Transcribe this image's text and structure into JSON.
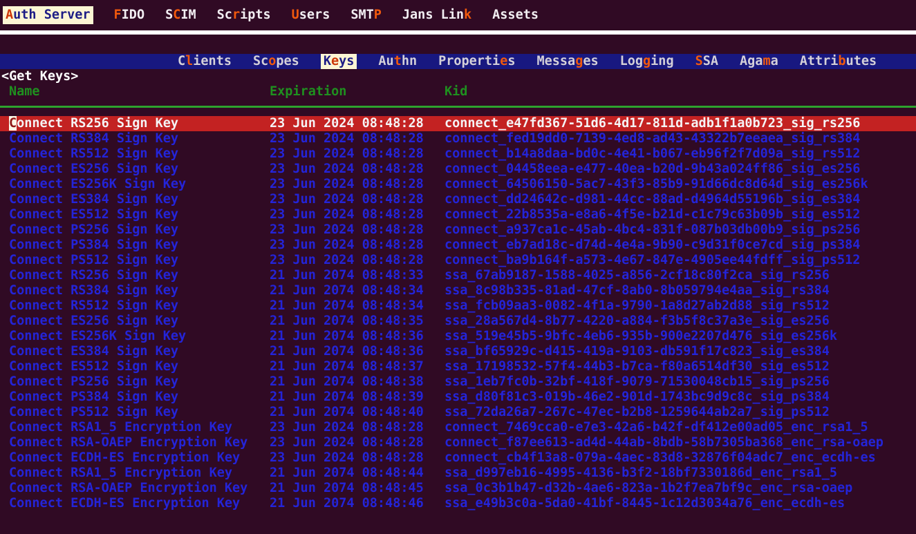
{
  "colors": {
    "background": "#300a24",
    "navbar_bg": "#181880",
    "selection_bg": "#c32222",
    "row_text": "#2424d8",
    "header_text": "#1f901f",
    "rule": "#2ea22e",
    "accent": "#f2590d",
    "highlight_bg": "#fcf6d4",
    "highlight_text": "#1c1c85",
    "menu_text": "#f2eef2",
    "nav_text": "#d4d0d8",
    "separator": "#ffffff",
    "selected_text": "#f5f3f5",
    "cursor_bg": "#fbf7e8",
    "cursor_text": "#8f1616"
  },
  "menubar": {
    "items": [
      {
        "pre": "",
        "hot": "A",
        "post": "uth Server",
        "active": true
      },
      {
        "pre": "",
        "hot": "F",
        "post": "IDO"
      },
      {
        "pre": "S",
        "hot": "C",
        "post": "IM"
      },
      {
        "pre": "Sc",
        "hot": "r",
        "post": "ipts"
      },
      {
        "pre": "",
        "hot": "U",
        "post": "sers"
      },
      {
        "pre": "SMT",
        "hot": "P",
        "post": ""
      },
      {
        "pre": "Jans Lin",
        "hot": "k",
        "post": ""
      },
      {
        "pre": "Assets",
        "hot": "",
        "post": ""
      }
    ]
  },
  "navbar": {
    "items": [
      {
        "pre": "C",
        "hot": "l",
        "post": "ients"
      },
      {
        "pre": "Sc",
        "hot": "o",
        "post": "pes"
      },
      {
        "pre": "K",
        "hot": "e",
        "post": "ys",
        "active": true
      },
      {
        "pre": "Au",
        "hot": "t",
        "post": "hn"
      },
      {
        "pre": "Properti",
        "hot": "e",
        "post": "s"
      },
      {
        "pre": "Messa",
        "hot": "g",
        "post": "es"
      },
      {
        "pre": "Log",
        "hot": "g",
        "post": "ing"
      },
      {
        "pre": "",
        "hot": "S",
        "post": "SA"
      },
      {
        "pre": "Aga",
        "hot": "m",
        "post": "a"
      },
      {
        "pre": "Attri",
        "hot": "b",
        "post": "utes"
      }
    ]
  },
  "get_keys_button": "<Get Keys>",
  "table": {
    "columns": [
      "Name",
      "Expiration",
      "Kid"
    ],
    "rows": [
      {
        "name": "Connect RS256 Sign Key",
        "expiration": "23 Jun 2024 08:48:28",
        "kid": "connect_e47fd367-51d6-4d17-811d-adb1f1a0b723_sig_rs256",
        "selected": true
      },
      {
        "name": "Connect RS384 Sign Key",
        "expiration": "23 Jun 2024 08:48:28",
        "kid": "connect_fed19dd0-7139-4ed8-ad43-43322b7eeaea_sig_rs384"
      },
      {
        "name": "Connect RS512 Sign Key",
        "expiration": "23 Jun 2024 08:48:28",
        "kid": "connect_b14a8daa-bd0c-4e41-b067-eb96f2f7d09a_sig_rs512"
      },
      {
        "name": "Connect ES256 Sign Key",
        "expiration": "23 Jun 2024 08:48:28",
        "kid": "connect_04458eea-e477-40ea-b20d-9b43a024ff86_sig_es256"
      },
      {
        "name": "Connect ES256K Sign Key",
        "expiration": "23 Jun 2024 08:48:28",
        "kid": "connect_64506150-5ac7-43f3-85b9-91d66dc8d64d_sig_es256k"
      },
      {
        "name": "Connect ES384 Sign Key",
        "expiration": "23 Jun 2024 08:48:28",
        "kid": "connect_dd24642c-d981-44cc-88ad-d4964d55196b_sig_es384"
      },
      {
        "name": "Connect ES512 Sign Key",
        "expiration": "23 Jun 2024 08:48:28",
        "kid": "connect_22b8535a-e8a6-4f5e-b21d-c1c79c63b09b_sig_es512"
      },
      {
        "name": "Connect PS256 Sign Key",
        "expiration": "23 Jun 2024 08:48:28",
        "kid": "connect_a937ca1c-45ab-4bc4-831f-087b03db00b9_sig_ps256"
      },
      {
        "name": "Connect PS384 Sign Key",
        "expiration": "23 Jun 2024 08:48:28",
        "kid": "connect_eb7ad18c-d74d-4e4a-9b90-c9d31f0ce7cd_sig_ps384"
      },
      {
        "name": "Connect PS512 Sign Key",
        "expiration": "23 Jun 2024 08:48:28",
        "kid": "connect_ba9b164f-a573-4e67-847e-4905ee44fdff_sig_ps512"
      },
      {
        "name": "Connect RS256 Sign Key",
        "expiration": "21 Jun 2074 08:48:33",
        "kid": "ssa_67ab9187-1588-4025-a856-2cf18c80f2ca_sig_rs256"
      },
      {
        "name": "Connect RS384 Sign Key",
        "expiration": "21 Jun 2074 08:48:34",
        "kid": "ssa_8c98b335-81ad-47cf-8ab0-8b059794e4aa_sig_rs384"
      },
      {
        "name": "Connect RS512 Sign Key",
        "expiration": "21 Jun 2074 08:48:34",
        "kid": "ssa_fcb09aa3-0082-4f1a-9790-1a8d27ab2d88_sig_rs512"
      },
      {
        "name": "Connect ES256 Sign Key",
        "expiration": "21 Jun 2074 08:48:35",
        "kid": "ssa_28a567d4-8b77-4220-a884-f3b5f8c37a3e_sig_es256"
      },
      {
        "name": "Connect ES256K Sign Key",
        "expiration": "21 Jun 2074 08:48:36",
        "kid": "ssa_519e45b5-9bfc-4eb6-935b-900e2207d476_sig_es256k"
      },
      {
        "name": "Connect ES384 Sign Key",
        "expiration": "21 Jun 2074 08:48:36",
        "kid": "ssa_bf65929c-d415-419a-9103-db591f17c823_sig_es384"
      },
      {
        "name": "Connect ES512 Sign Key",
        "expiration": "21 Jun 2074 08:48:37",
        "kid": "ssa_17198532-57f4-44b3-b7ca-f80a6514df30_sig_es512"
      },
      {
        "name": "Connect PS256 Sign Key",
        "expiration": "21 Jun 2074 08:48:38",
        "kid": "ssa_1eb7fc0b-32bf-418f-9079-71530048cb15_sig_ps256"
      },
      {
        "name": "Connect PS384 Sign Key",
        "expiration": "21 Jun 2074 08:48:39",
        "kid": "ssa_d80f81c3-019b-46e2-901d-1743bc9d9c8c_sig_ps384"
      },
      {
        "name": "Connect PS512 Sign Key",
        "expiration": "21 Jun 2074 08:48:40",
        "kid": "ssa_72da26a7-267c-47ec-b2b8-1259644ab2a7_sig_ps512"
      },
      {
        "name": "Connect RSA1_5 Encryption Key",
        "expiration": "23 Jun 2024 08:48:28",
        "kid": "connect_7469cca0-e7e3-42a6-b42f-df412e00ad05_enc_rsa1_5"
      },
      {
        "name": "Connect RSA-OAEP Encryption Key",
        "expiration": "23 Jun 2024 08:48:28",
        "kid": "connect_f87ee613-ad4d-44ab-8bdb-58b7305ba368_enc_rsa-oaep"
      },
      {
        "name": "Connect ECDH-ES Encryption Key",
        "expiration": "23 Jun 2024 08:48:28",
        "kid": "connect_cb4f13a8-079a-4aec-83d8-32876f04adc7_enc_ecdh-es"
      },
      {
        "name": "Connect RSA1_5 Encryption Key",
        "expiration": "21 Jun 2074 08:48:44",
        "kid": "ssa_d997eb16-4995-4136-b3f2-18bf7330186d_enc_rsa1_5"
      },
      {
        "name": "Connect RSA-OAEP Encryption Key",
        "expiration": "21 Jun 2074 08:48:45",
        "kid": "ssa_0c3b1b47-d32b-4ae6-823a-1b2f7ea7bf9c_enc_rsa-oaep"
      },
      {
        "name": "Connect ECDH-ES Encryption Key",
        "expiration": "21 Jun 2074 08:48:46",
        "kid": "ssa_e49b3c0a-5da0-41bf-8445-1c12d3034a76_enc_ecdh-es"
      }
    ]
  }
}
